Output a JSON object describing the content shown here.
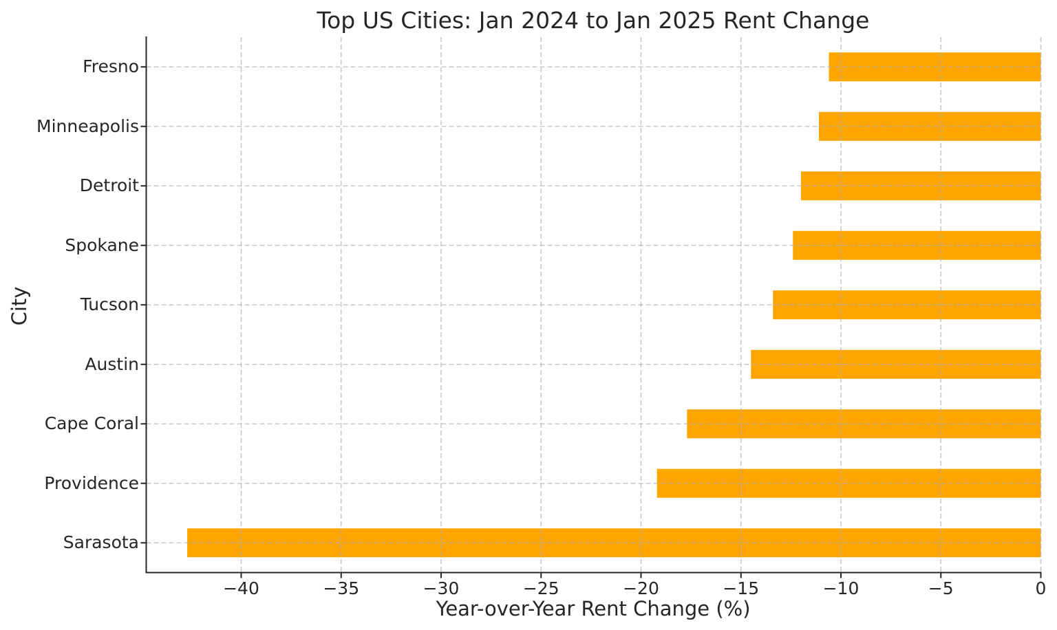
{
  "figure": {
    "background": "#ffffff"
  },
  "chart_data": {
    "type": "bar",
    "orientation": "horizontal",
    "title": "Top US Cities: Jan 2024 to Jan 2025 Rent Change",
    "xlabel": "Year-over-Year Rent Change (%)",
    "ylabel": "City",
    "categories": [
      "Fresno",
      "Minneapolis",
      "Detroit",
      "Spokane",
      "Tucson",
      "Austin",
      "Cape Coral",
      "Providence",
      "Sarasota"
    ],
    "values": [
      -10.6,
      -11.1,
      -12.0,
      -12.4,
      -13.4,
      -14.5,
      -17.7,
      -19.2,
      -42.7
    ],
    "xlim": [
      -44.75,
      0
    ],
    "xticks": [
      -40,
      -35,
      -30,
      -25,
      -20,
      -15,
      -10,
      -5,
      0
    ],
    "xtick_labels": [
      "−40",
      "−35",
      "−30",
      "−25",
      "−20",
      "−15",
      "−10",
      "−5",
      "0"
    ],
    "grid": true,
    "grid_linestyle": "dashed",
    "legend": "none",
    "bar_color": "#FFA500",
    "axis_color": "#262626",
    "grid_color": "#b0b0b0",
    "text_color": "#262626"
  }
}
